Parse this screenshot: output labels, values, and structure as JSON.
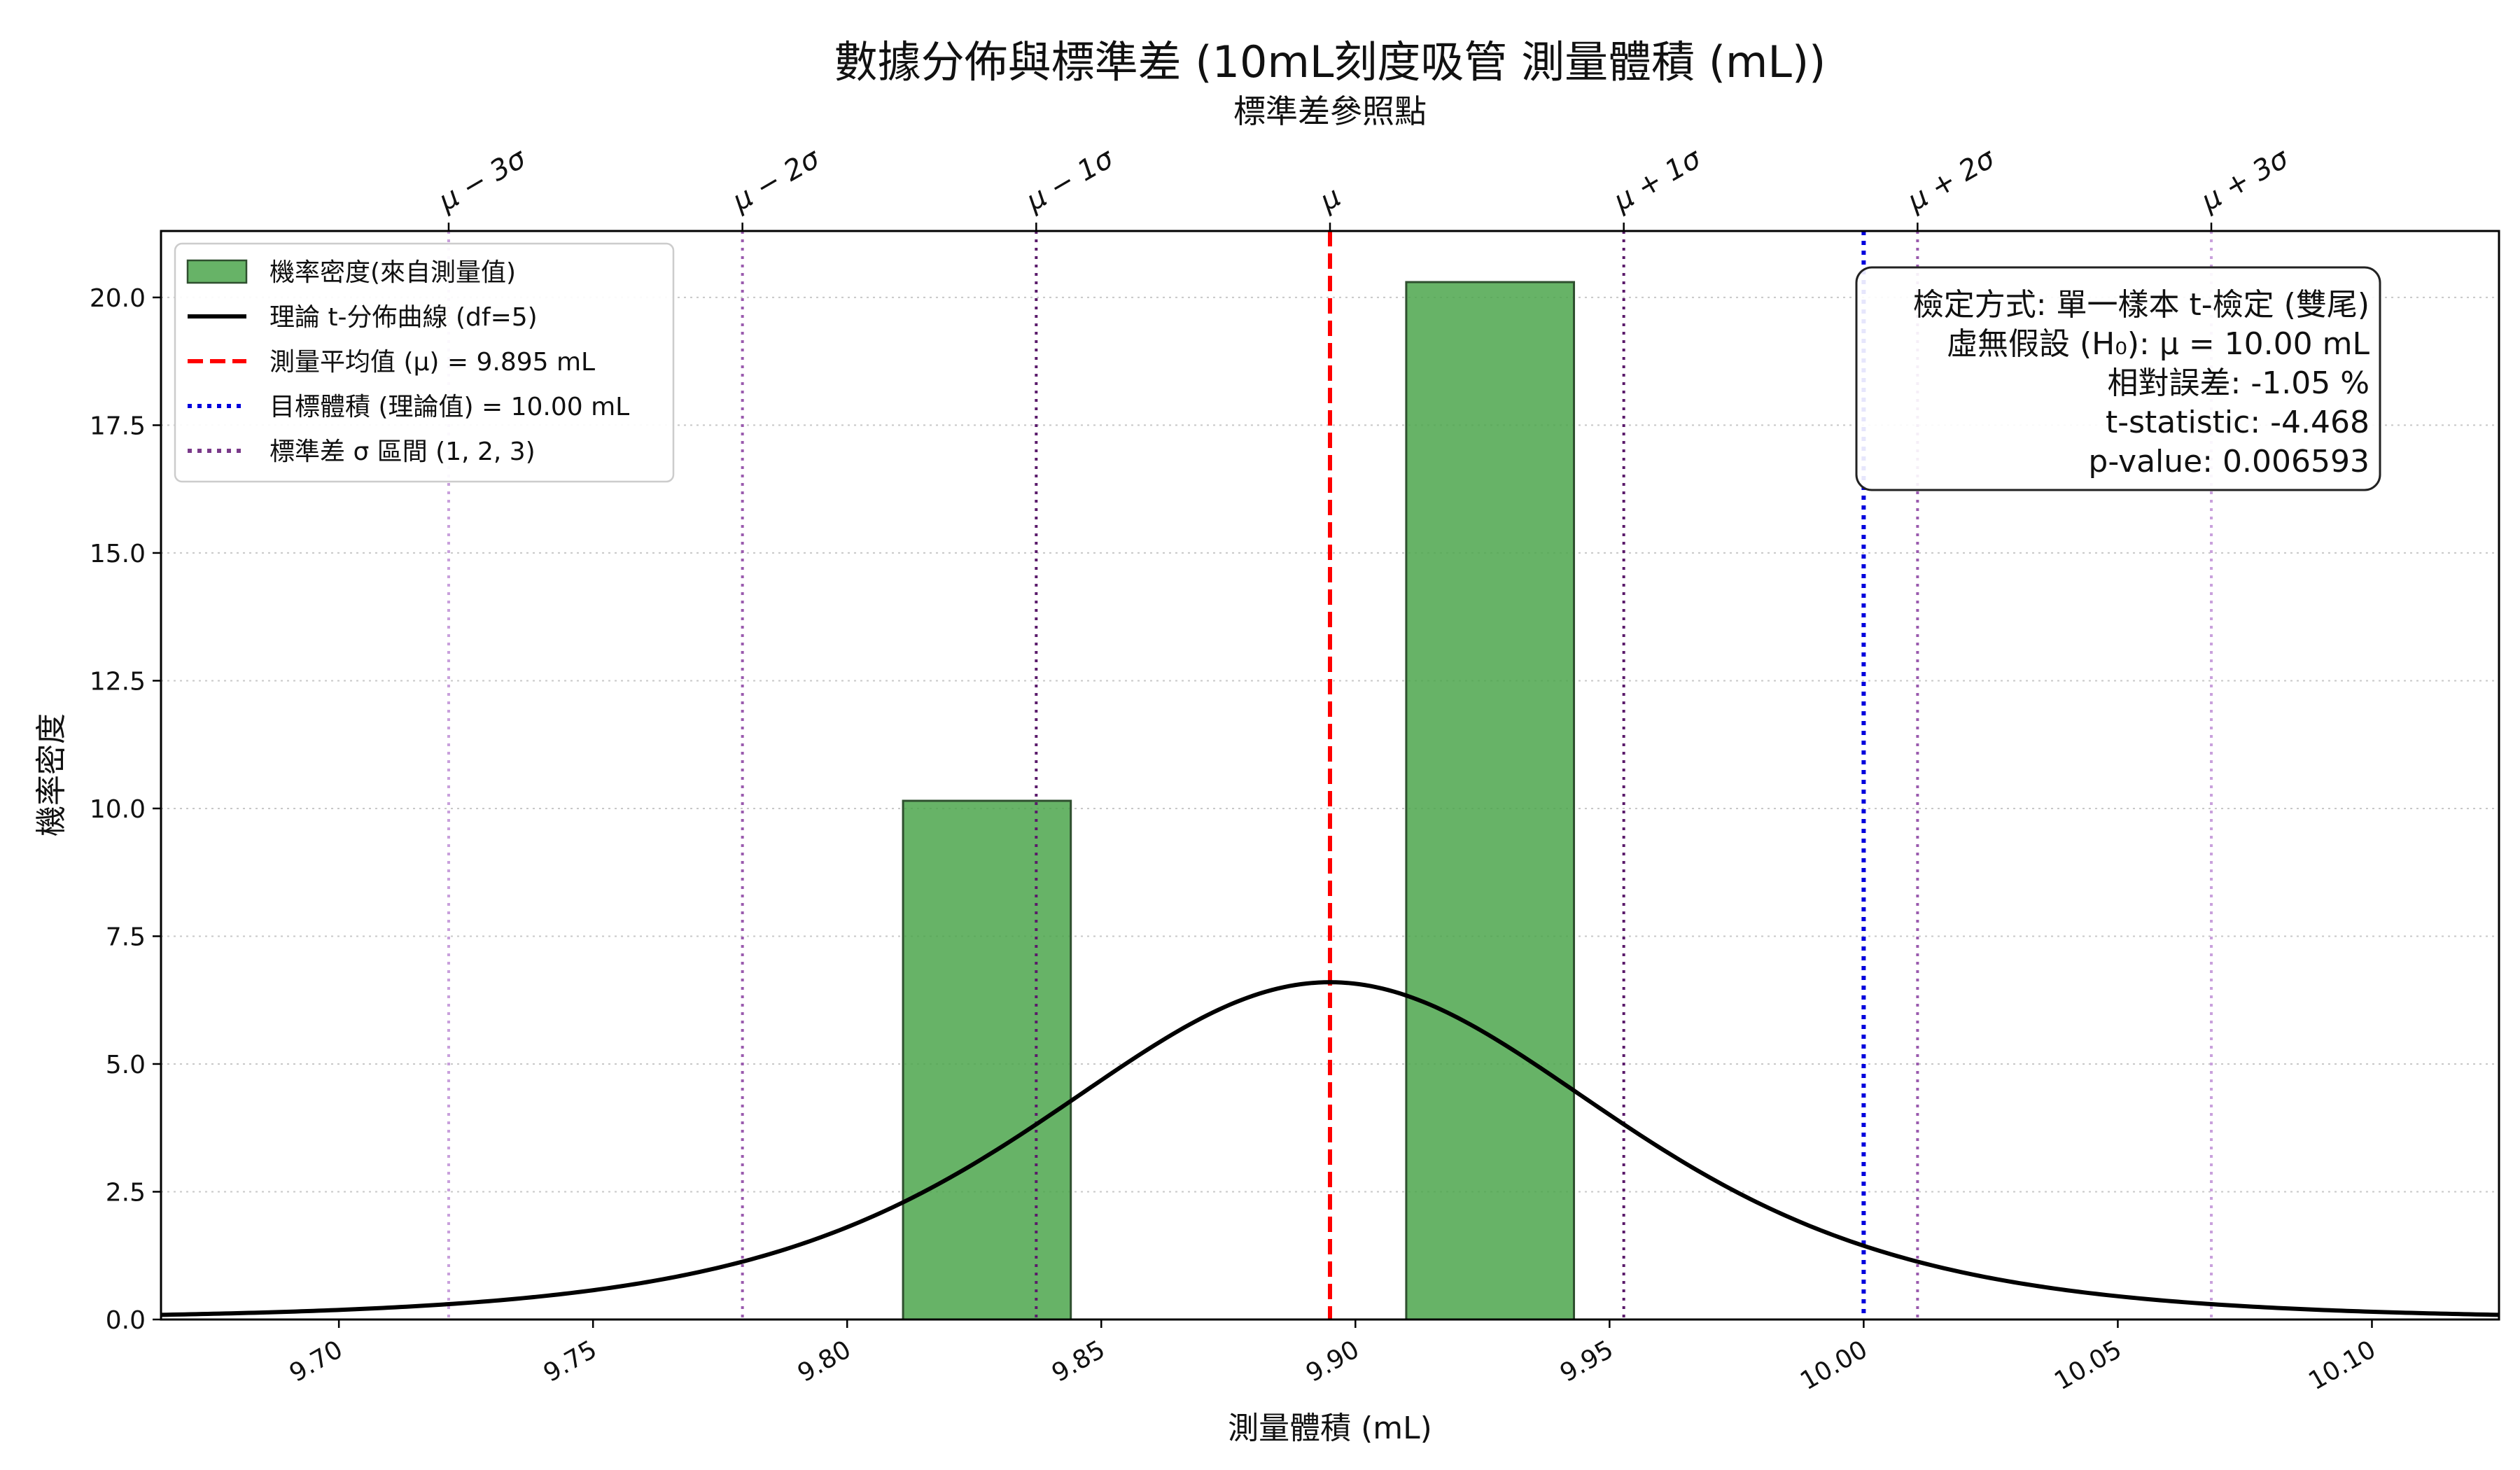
{
  "chart_data": {
    "type": "bar+line",
    "title": "數據分佈與標準差 (10mL刻度吸管 測量體積 (mL))",
    "secondary_title": "標準差參照點",
    "xlabel": "測量體積 (mL)",
    "ylabel": "機率密度",
    "xlim": [
      9.665,
      10.125
    ],
    "ylim": [
      0,
      21.3
    ],
    "xticks": [
      9.7,
      9.75,
      9.8,
      9.85,
      9.9,
      9.95,
      10.0,
      10.05,
      10.1
    ],
    "xtick_labels": [
      "9.70",
      "9.75",
      "9.80",
      "9.85",
      "9.90",
      "9.95",
      "10.00",
      "10.05",
      "10.10"
    ],
    "yticks": [
      0.0,
      2.5,
      5.0,
      7.5,
      10.0,
      12.5,
      15.0,
      17.5,
      20.0
    ],
    "ytick_labels": [
      "0.0",
      "2.5",
      "5.0",
      "7.5",
      "10.0",
      "12.5",
      "15.0",
      "17.5",
      "20.0"
    ],
    "grid": "horizontal dotted",
    "histogram": {
      "name": "機率密度(來自測量值)",
      "color": "#4ca64c",
      "bins": [
        {
          "x0": 9.811,
          "x1": 9.844,
          "density": 10.15
        },
        {
          "x0": 9.91,
          "x1": 9.943,
          "density": 20.3
        }
      ]
    },
    "t_curve": {
      "name": "理論 t-分佈曲線 (df=5)",
      "df": 5,
      "mean": 9.895,
      "scale": 0.0578,
      "peak_density": 6.6,
      "color": "#000000"
    },
    "mean_line": {
      "name": "測量平均值 (μ) = 9.895 mL",
      "x": 9.895,
      "color": "#ff0000"
    },
    "target_line": {
      "name": "目標體積 (理論值) = 10.00 mL",
      "x": 10.0,
      "color": "#0000dd"
    },
    "sigma": 0.0578,
    "sigma_lines": [
      {
        "label": "μ − 3σ",
        "x": 9.7216,
        "color": "#c9a0dc"
      },
      {
        "label": "μ − 2σ",
        "x": 9.7794,
        "color": "#9a5aae"
      },
      {
        "label": "μ − 1σ",
        "x": 9.8372,
        "color": "#5a1a6a"
      },
      {
        "label": "μ",
        "x": 9.895,
        "color": "#ff0000"
      },
      {
        "label": "μ + 1σ",
        "x": 9.9528,
        "color": "#5a1a6a"
      },
      {
        "label": "μ + 2σ",
        "x": 10.0106,
        "color": "#9a5aae"
      },
      {
        "label": "μ + 3σ",
        "x": 10.0684,
        "color": "#c9a0dc"
      }
    ],
    "legend": {
      "placement": "top-left",
      "entries": [
        {
          "label": "機率密度(來自測量值)",
          "style": "patch",
          "color": "#4ca64c"
        },
        {
          "label": "理論 t-分佈曲線 (df=5)",
          "style": "solid",
          "color": "#000000"
        },
        {
          "label": "測量平均值 (μ) = 9.895 mL",
          "style": "dashed",
          "color": "#ff0000"
        },
        {
          "label": "目標體積 (理論值) = 10.00 mL",
          "style": "dotted",
          "color": "#0000dd"
        },
        {
          "label": "標準差 σ 區間 (1, 2, 3)",
          "style": "dotted",
          "color": "#7a3a8a"
        }
      ]
    },
    "stats_box": {
      "placement": "top-right",
      "lines": [
        "檢定方式: 單一樣本 t-檢定 (雙尾)",
        "虛無假設 (H₀): μ = 10.00 mL",
        "相對誤差: -1.05 %",
        "t-statistic: -4.468",
        "p-value: 0.006593"
      ]
    }
  }
}
